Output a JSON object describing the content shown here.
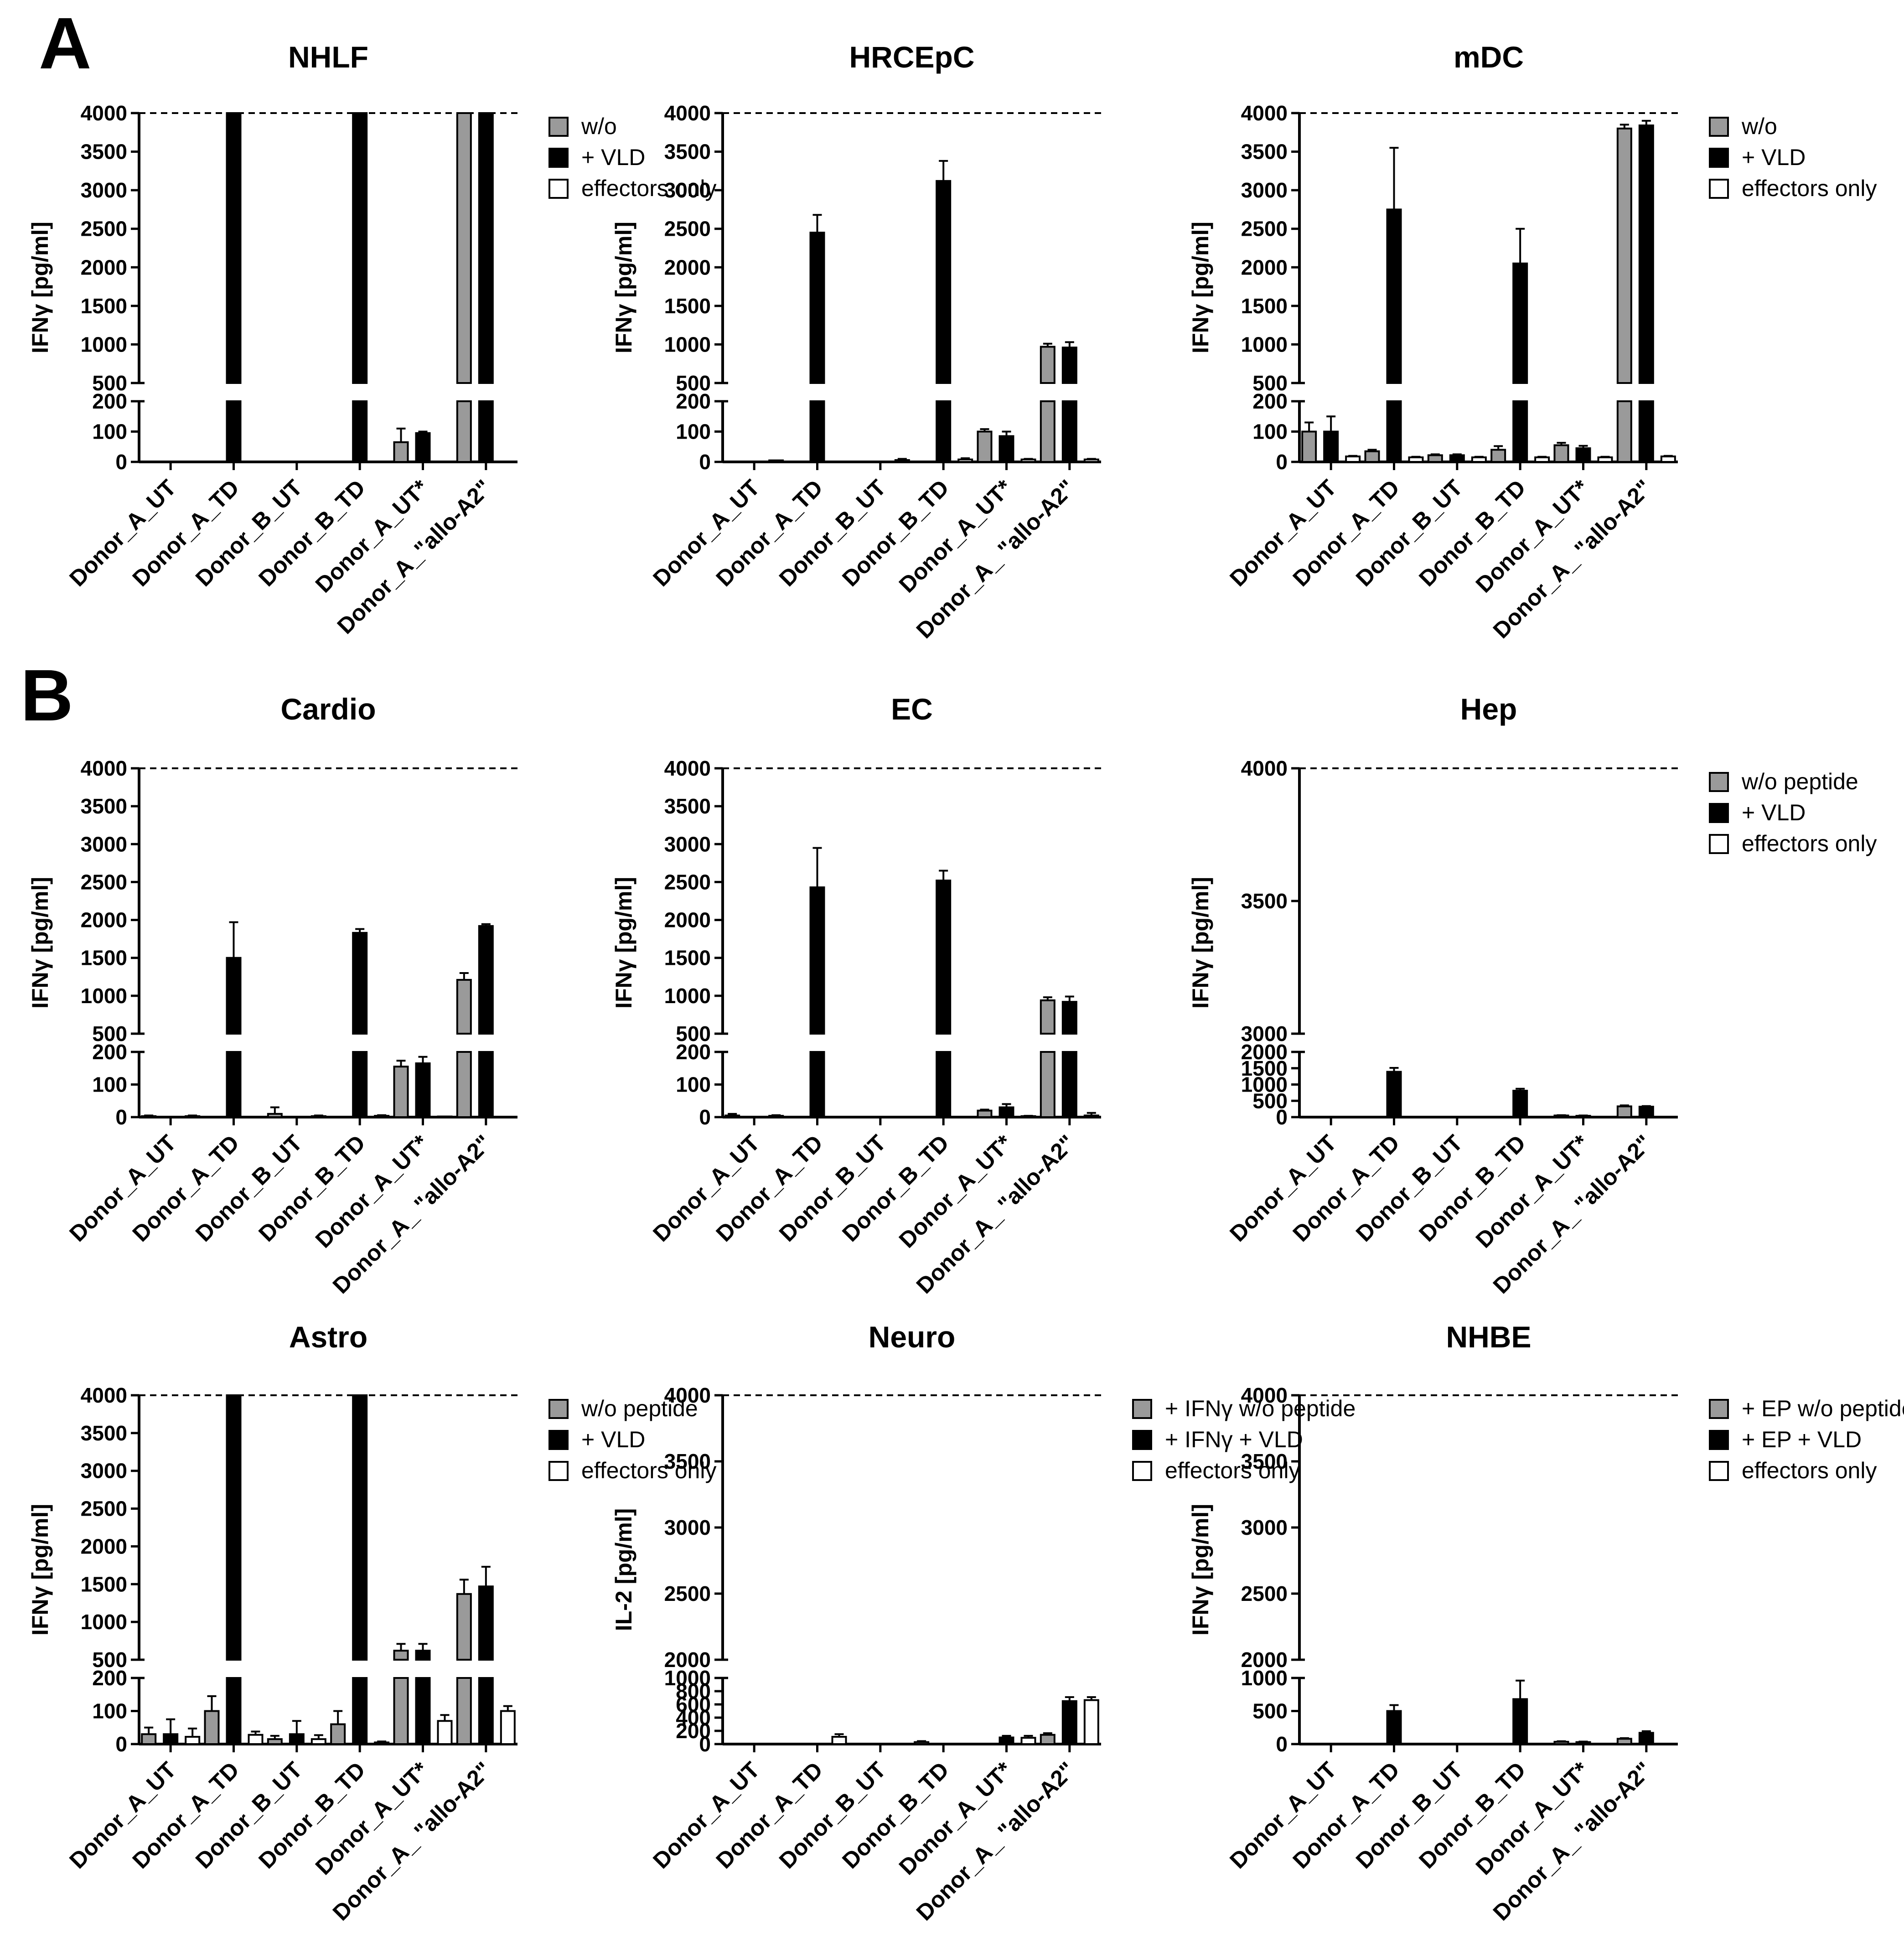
{
  "panel_labels": [
    "A",
    "B"
  ],
  "colors": {
    "gray": "#9a9a9a",
    "black": "#000000",
    "white": "#ffffff"
  },
  "chart_data": [
    {
      "type": "bar",
      "title": "NHLF",
      "ylabel": "IFNγ [pg/ml]",
      "categories": [
        "Donor_A_UT",
        "Donor_A_TD",
        "Donor_B_UT",
        "Donor_B_TD",
        "Donor_A_UT*",
        "Donor_A_\"allo-A2\""
      ],
      "axis_break": {
        "lower": [
          0,
          200
        ],
        "upper": [
          500,
          4000
        ]
      },
      "lower_ticks": [
        0,
        100,
        200
      ],
      "upper_ticks": [
        500,
        1000,
        1500,
        2000,
        2500,
        3000,
        3500,
        4000
      ],
      "reference_line": 4000,
      "legend": [
        "w/o",
        "+ VLD",
        "effectors only"
      ],
      "series": [
        {
          "name": "w/o",
          "color": "gray",
          "values": [
            0,
            0,
            0,
            0,
            65,
            4000
          ],
          "errors": [
            0,
            0,
            0,
            0,
            45,
            0
          ]
        },
        {
          "name": "+ VLD",
          "color": "black",
          "values": [
            0,
            4000,
            0,
            4000,
            95,
            4000
          ],
          "errors": [
            0,
            0,
            0,
            0,
            5,
            0
          ]
        }
      ]
    },
    {
      "type": "bar",
      "title": "HRCEpC",
      "ylabel": "IFNγ [pg/ml]",
      "categories": [
        "Donor_A_UT",
        "Donor_A_TD",
        "Donor_B_UT",
        "Donor_B_TD",
        "Donor_A_UT*",
        "Donor_A_ \"allo-A2\""
      ],
      "axis_break": {
        "lower": [
          0,
          200
        ],
        "upper": [
          500,
          4000
        ]
      },
      "lower_ticks": [
        0,
        100,
        200
      ],
      "upper_ticks": [
        500,
        1000,
        1500,
        2000,
        2500,
        3000,
        3500,
        4000
      ],
      "reference_line": 4000,
      "series": [
        {
          "name": "w/o",
          "color": "gray",
          "values": [
            0,
            0,
            0,
            0,
            100,
            970
          ],
          "errors": [
            0,
            0,
            0,
            0,
            8,
            40
          ]
        },
        {
          "name": "+ VLD",
          "color": "black",
          "values": [
            0,
            2450,
            0,
            3120,
            85,
            960
          ],
          "errors": [
            0,
            230,
            0,
            260,
            15,
            70
          ]
        },
        {
          "name": "effectors only",
          "color": "white",
          "values": [
            5,
            0,
            6,
            8,
            8,
            8
          ],
          "errors": [
            0,
            0,
            4,
            4,
            2,
            2
          ]
        }
      ]
    },
    {
      "type": "bar",
      "title": "mDC",
      "ylabel": "IFNγ [pg/ml]",
      "categories": [
        "Donor_A_UT",
        "Donor_A_TD",
        "Donor_B_UT",
        "Donor_B_TD",
        "Donor_A_UT*",
        "Donor_A_ \"allo-A2\""
      ],
      "axis_break": {
        "lower": [
          0,
          200
        ],
        "upper": [
          500,
          4000
        ]
      },
      "lower_ticks": [
        0,
        100,
        200
      ],
      "upper_ticks": [
        500,
        1000,
        1500,
        2000,
        2500,
        3000,
        3500,
        4000
      ],
      "reference_line": 4000,
      "legend": [
        "w/o",
        "+ VLD",
        "effectors only"
      ],
      "series": [
        {
          "name": "w/o",
          "color": "gray",
          "values": [
            100,
            35,
            22,
            40,
            55,
            3800
          ],
          "errors": [
            30,
            5,
            3,
            12,
            8,
            50
          ]
        },
        {
          "name": "+ VLD",
          "color": "black",
          "values": [
            100,
            2750,
            22,
            2050,
            45,
            3840
          ],
          "errors": [
            50,
            800,
            3,
            450,
            8,
            60
          ]
        },
        {
          "name": "effectors only",
          "color": "white",
          "values": [
            18,
            15,
            15,
            15,
            15,
            18
          ],
          "errors": [
            2,
            2,
            2,
            2,
            2,
            2
          ]
        }
      ]
    },
    {
      "type": "bar",
      "title": "Cardio",
      "ylabel": "IFNγ [pg/ml]",
      "categories": [
        "Donor_A_UT",
        "Donor_A_TD",
        "Donor_B_UT",
        "Donor_B_TD",
        "Donor_A_UT*",
        "Donor_A_ \"allo-A2\""
      ],
      "axis_break": {
        "lower": [
          0,
          200
        ],
        "upper": [
          500,
          4000
        ]
      },
      "lower_ticks": [
        0,
        100,
        200
      ],
      "upper_ticks": [
        500,
        1000,
        1500,
        2000,
        2500,
        3000,
        3500,
        4000
      ],
      "reference_line": 4000,
      "series": [
        {
          "name": "w/o",
          "color": "gray",
          "values": [
            3,
            0,
            10,
            0,
            155,
            1210
          ],
          "errors": [
            2,
            0,
            20,
            0,
            18,
            90
          ]
        },
        {
          "name": "+ VLD",
          "color": "black",
          "values": [
            0,
            1500,
            0,
            1830,
            165,
            1920
          ],
          "errors": [
            0,
            470,
            0,
            50,
            20,
            25
          ]
        },
        {
          "name": "effectors only",
          "color": "white",
          "values": [
            3,
            0,
            3,
            4,
            2,
            0
          ],
          "errors": [
            2,
            0,
            2,
            2,
            0,
            0
          ]
        }
      ]
    },
    {
      "type": "bar",
      "title": "EC",
      "ylabel": "IFNγ [pg/ml]",
      "categories": [
        "Donor_A_UT",
        "Donor_A_TD",
        "Donor_B_UT",
        "Donor_B_TD",
        "Donor_A_UT*",
        "Donor_A_ \"allo-A2\""
      ],
      "axis_break": {
        "lower": [
          0,
          200
        ],
        "upper": [
          500,
          4000
        ]
      },
      "lower_ticks": [
        0,
        100,
        200
      ],
      "upper_ticks": [
        500,
        1000,
        1500,
        2000,
        2500,
        3000,
        3500,
        4000
      ],
      "reference_line": 4000,
      "series": [
        {
          "name": "w/o",
          "color": "gray",
          "values": [
            5,
            0,
            0,
            0,
            20,
            940
          ],
          "errors": [
            5,
            0,
            0,
            0,
            3,
            40
          ]
        },
        {
          "name": "+ VLD",
          "color": "black",
          "values": [
            0,
            2430,
            0,
            2520,
            30,
            920
          ],
          "errors": [
            0,
            520,
            0,
            130,
            10,
            70
          ]
        },
        {
          "name": "effectors only",
          "color": "white",
          "values": [
            4,
            0,
            0,
            0,
            3,
            5
          ],
          "errors": [
            2,
            0,
            0,
            0,
            1,
            8
          ]
        }
      ]
    },
    {
      "type": "bar",
      "title": "Hep",
      "ylabel": "IFNγ [pg/ml]",
      "categories": [
        "Donor_A_UT",
        "Donor_A_TD",
        "Donor_B_UT",
        "Donor_B_TD",
        "Donor_A_UT*",
        "Donor_A_ \"allo-A2\""
      ],
      "axis_break": {
        "lower": [
          0,
          2000
        ],
        "upper": [
          3000,
          4000
        ]
      },
      "lower_ticks": [
        0,
        500,
        1000,
        1500,
        2000
      ],
      "upper_ticks": [
        3000,
        3500,
        4000
      ],
      "reference_line": 4000,
      "legend": [
        "w/o peptide",
        "+ VLD",
        "effectors only"
      ],
      "series": [
        {
          "name": "w/o peptide",
          "color": "gray",
          "values": [
            5,
            0,
            0,
            0,
            50,
            330
          ],
          "errors": [
            3,
            0,
            0,
            0,
            10,
            30
          ]
        },
        {
          "name": "+ VLD",
          "color": "black",
          "values": [
            0,
            1390,
            0,
            810,
            40,
            320
          ],
          "errors": [
            0,
            120,
            0,
            60,
            10,
            20
          ]
        }
      ]
    },
    {
      "type": "bar",
      "title": "Astro",
      "ylabel": "IFNγ [pg/ml]",
      "categories": [
        "Donor_A_UT",
        "Donor_A_TD",
        "Donor_B_UT",
        "Donor_B_TD",
        "Donor_A_UT*",
        "Donor_A_ \"allo-A2\""
      ],
      "axis_break": {
        "lower": [
          0,
          200
        ],
        "upper": [
          500,
          4000
        ]
      },
      "lower_ticks": [
        0,
        100,
        200
      ],
      "upper_ticks": [
        500,
        1000,
        1500,
        2000,
        2500,
        3000,
        3500,
        4000
      ],
      "reference_line": 4000,
      "legend": [
        "w/o peptide",
        "+ VLD",
        "effectors only"
      ],
      "series": [
        {
          "name": "w/o peptide",
          "color": "gray",
          "values": [
            30,
            100,
            15,
            60,
            620,
            1370
          ],
          "errors": [
            20,
            45,
            10,
            40,
            90,
            190
          ]
        },
        {
          "name": "+ VLD",
          "color": "black",
          "values": [
            30,
            4000,
            30,
            4000,
            620,
            1470
          ],
          "errors": [
            45,
            0,
            40,
            0,
            90,
            260
          ]
        },
        {
          "name": "effectors only",
          "color": "white",
          "values": [
            22,
            28,
            15,
            5,
            70,
            100
          ],
          "errors": [
            25,
            10,
            12,
            3,
            18,
            15
          ]
        }
      ]
    },
    {
      "type": "bar",
      "title": "Neuro",
      "ylabel": "IL-2 [pg/ml]",
      "categories": [
        "Donor_A_UT",
        "Donor_A_TD",
        "Donor_B_UT",
        "Donor_B_TD",
        "Donor_A_UT*",
        "Donor_A_ \"allo-A2\""
      ],
      "axis_break": {
        "lower": [
          0,
          1000
        ],
        "upper": [
          2000,
          4000
        ]
      },
      "lower_ticks": [
        0,
        200,
        400,
        600,
        800,
        1000
      ],
      "upper_ticks": [
        2000,
        2500,
        3000,
        3500,
        4000
      ],
      "reference_line": 4000,
      "legend": [
        "+ IFNγ w/o peptide",
        "+ IFNγ + VLD",
        "effectors only"
      ],
      "series": [
        {
          "name": "+ IFNγ w/o peptide",
          "color": "gray",
          "values": [
            0,
            0,
            0,
            30,
            0,
            140
          ],
          "errors": [
            0,
            0,
            0,
            15,
            0,
            25
          ]
        },
        {
          "name": "+ IFNγ + VLD",
          "color": "black",
          "values": [
            0,
            0,
            0,
            0,
            100,
            650
          ],
          "errors": [
            0,
            0,
            0,
            0,
            25,
            60
          ]
        },
        {
          "name": "effectors only",
          "color": "white",
          "values": [
            0,
            110,
            0,
            0,
            95,
            665
          ],
          "errors": [
            0,
            40,
            0,
            0,
            30,
            45
          ]
        }
      ]
    },
    {
      "type": "bar",
      "title": "NHBE",
      "ylabel": "IFNγ [pg/ml]",
      "categories": [
        "Donor_A_UT",
        "Donor_A_TD",
        "Donor_B_UT",
        "Donor_B_TD",
        "Donor_A_UT*",
        "Donor_A_ \"allo-A2\""
      ],
      "axis_break": {
        "lower": [
          0,
          1000
        ],
        "upper": [
          2000,
          4000
        ]
      },
      "lower_ticks": [
        0,
        500,
        1000
      ],
      "upper_ticks": [
        2000,
        2500,
        3000,
        3500,
        4000
      ],
      "reference_line": 4000,
      "legend": [
        "+ EP w/o peptide",
        "+ EP + VLD",
        "effectors only"
      ],
      "series": [
        {
          "name": "+ EP w/o peptide",
          "color": "gray",
          "values": [
            0,
            5,
            0,
            0,
            35,
            80
          ],
          "errors": [
            0,
            0,
            0,
            0,
            8,
            10
          ]
        },
        {
          "name": "+ EP + VLD",
          "color": "black",
          "values": [
            0,
            500,
            0,
            680,
            30,
            170
          ],
          "errors": [
            0,
            90,
            0,
            280,
            8,
            25
          ]
        },
        {
          "name": "effectors only",
          "color": "white",
          "values": [
            0,
            0,
            0,
            0,
            5,
            5
          ],
          "errors": [
            0,
            0,
            0,
            0,
            2,
            2
          ]
        }
      ]
    }
  ]
}
